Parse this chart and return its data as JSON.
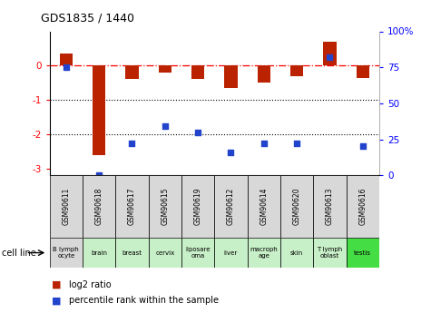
{
  "title": "GDS1835 / 1440",
  "samples": [
    "GSM90611",
    "GSM90618",
    "GSM90617",
    "GSM90615",
    "GSM90619",
    "GSM90612",
    "GSM90614",
    "GSM90620",
    "GSM90613",
    "GSM90616"
  ],
  "cell_lines": [
    "B lymph\nocyte",
    "brain",
    "breast",
    "cervix",
    "liposare\noma",
    "liver",
    "macroph\nage",
    "skin",
    "T lymph\noblast",
    "testis"
  ],
  "cell_colors": [
    "#d8d8d8",
    "#c8f0c8",
    "#c8f0c8",
    "#c8f0c8",
    "#c8f0c8",
    "#c8f0c8",
    "#c8f0c8",
    "#c8f0c8",
    "#c8f0c8",
    "#44dd44"
  ],
  "log2_ratio": [
    0.35,
    -2.6,
    -0.4,
    -0.2,
    -0.4,
    -0.65,
    -0.5,
    -0.3,
    0.7,
    -0.35
  ],
  "percentile_rank": [
    75,
    0,
    22,
    34,
    30,
    16,
    22,
    22,
    82,
    20
  ],
  "ylim_left": [
    -3.2,
    1.0
  ],
  "ylim_right": [
    0,
    100
  ],
  "bar_color": "#bb2200",
  "dot_color": "#2244cc",
  "hline_y": 0,
  "dotted_lines": [
    -1,
    -2
  ],
  "background_color": "#ffffff",
  "left_yticks": [
    0,
    -1,
    -2,
    -3
  ],
  "right_yticks": [
    0,
    25,
    50,
    75,
    100
  ],
  "right_yticklabels": [
    "0",
    "25",
    "50",
    "75",
    "100%"
  ]
}
